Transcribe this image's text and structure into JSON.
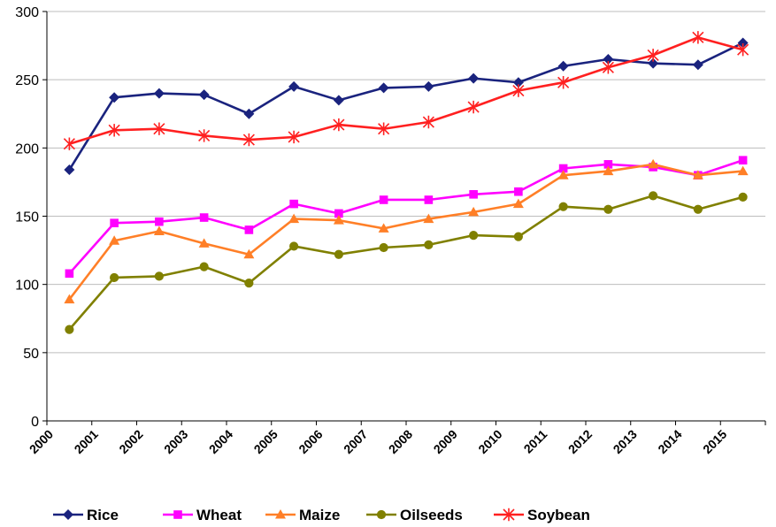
{
  "chart_data": {
    "type": "line",
    "title": "",
    "xlabel": "",
    "ylabel": "",
    "categories": [
      "2000",
      "2001",
      "2002",
      "2003",
      "2004",
      "2005",
      "2006",
      "2007",
      "2008",
      "2009",
      "2010",
      "2011",
      "2012",
      "2013",
      "2014",
      "2015"
    ],
    "ylim": [
      0,
      300
    ],
    "yticks": [
      0,
      50,
      100,
      150,
      200,
      250,
      300
    ],
    "grid": "horizontal",
    "legend_position": "bottom",
    "series": [
      {
        "name": "Rice",
        "color": "#1a237e",
        "marker": "diamond",
        "values": [
          184,
          237,
          240,
          239,
          225,
          245,
          235,
          244,
          245,
          251,
          248,
          260,
          265,
          262,
          261,
          277
        ]
      },
      {
        "name": "Wheat",
        "color": "#ff00ff",
        "marker": "square",
        "values": [
          108,
          145,
          146,
          149,
          140,
          159,
          152,
          162,
          162,
          166,
          168,
          185,
          188,
          186,
          180,
          191
        ]
      },
      {
        "name": "Maize",
        "color": "#ff7f27",
        "marker": "triangle",
        "values": [
          89,
          132,
          139,
          130,
          122,
          148,
          147,
          141,
          148,
          153,
          159,
          180,
          183,
          188,
          180,
          183
        ]
      },
      {
        "name": "Oilseeds",
        "color": "#808000",
        "marker": "circle",
        "values": [
          67,
          105,
          106,
          113,
          101,
          128,
          122,
          127,
          129,
          136,
          135,
          157,
          155,
          165,
          155,
          164
        ]
      },
      {
        "name": "Soybean",
        "color": "#ff2020",
        "marker": "star",
        "values": [
          203,
          213,
          214,
          209,
          206,
          208,
          217,
          214,
          219,
          230,
          242,
          248,
          259,
          268,
          281,
          272
        ]
      }
    ]
  }
}
